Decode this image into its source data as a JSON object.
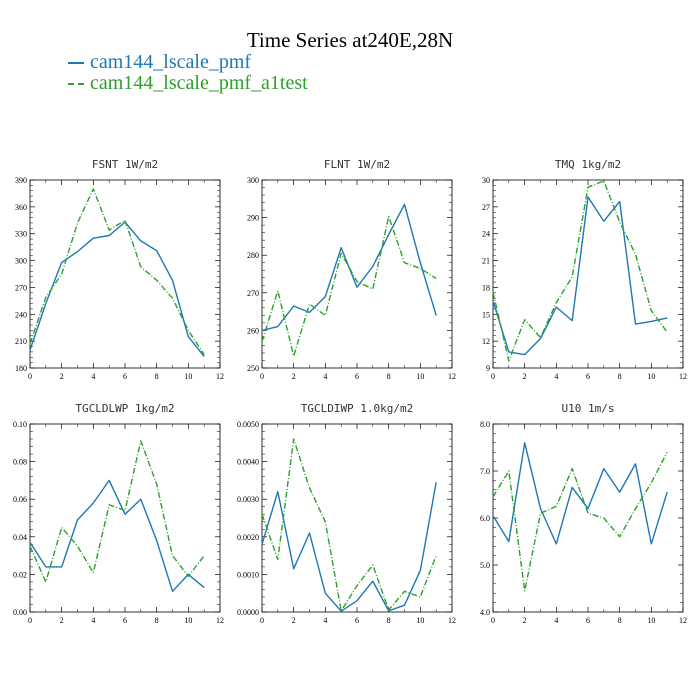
{
  "figure": {
    "title": "Time Series at240E,28N",
    "legend": [
      {
        "label": "cam144_lscale_pmf",
        "color": "#1f77b4",
        "style": "solid"
      },
      {
        "label": "cam144_lscale_pmf_a1test",
        "color": "#2ca02c",
        "style": "dashdot"
      }
    ]
  },
  "chart_data": [
    {
      "type": "line",
      "title": "FSNT  1W/m2",
      "x": [
        0,
        1,
        2,
        3,
        4,
        5,
        6,
        7,
        8,
        9,
        10,
        11
      ],
      "xlim": [
        0,
        12
      ],
      "xticks": [
        0,
        2,
        4,
        6,
        8,
        10,
        12
      ],
      "ylim": [
        180,
        390
      ],
      "yticks": [
        180,
        210,
        240,
        270,
        300,
        330,
        360,
        390
      ],
      "ytick_labels": [
        "180",
        "210",
        "240",
        "270",
        "300",
        "330",
        "360",
        "390"
      ],
      "series": [
        {
          "name": "cam144_lscale_pmf",
          "values": [
            200,
            252,
            298,
            310,
            325,
            328,
            343,
            322,
            311,
            278,
            215,
            193
          ]
        },
        {
          "name": "cam144_lscale_pmf_a1test",
          "values": [
            207,
            259,
            285,
            342,
            380,
            334,
            345,
            293,
            278,
            258,
            222,
            195
          ]
        }
      ]
    },
    {
      "type": "line",
      "title": "FLNT  1W/m2",
      "x": [
        0,
        1,
        2,
        3,
        4,
        5,
        6,
        7,
        8,
        9,
        10,
        11
      ],
      "xlim": [
        0,
        12
      ],
      "xticks": [
        0,
        2,
        4,
        6,
        8,
        10,
        12
      ],
      "ylim": [
        250,
        300
      ],
      "yticks": [
        250,
        260,
        270,
        280,
        290,
        300
      ],
      "ytick_labels": [
        "250",
        "260",
        "270",
        "280",
        "290",
        "300"
      ],
      "series": [
        {
          "name": "cam144_lscale_pmf",
          "values": [
            260,
            261,
            266.5,
            264.8,
            269,
            282,
            271.5,
            277,
            285.5,
            293.5,
            278,
            264
          ]
        },
        {
          "name": "cam144_lscale_pmf_a1test",
          "values": [
            257,
            270.5,
            253.2,
            267,
            264,
            280.5,
            273,
            271,
            290.3,
            278,
            276.5,
            273.8
          ]
        }
      ]
    },
    {
      "type": "line",
      "title": "TMQ  1kg/m2",
      "x": [
        0,
        1,
        2,
        3,
        4,
        5,
        6,
        7,
        8,
        9,
        10,
        11
      ],
      "xlim": [
        0,
        12
      ],
      "xticks": [
        0,
        2,
        4,
        6,
        8,
        10,
        12
      ],
      "ylim": [
        9,
        30
      ],
      "yticks": [
        9,
        12,
        15,
        18,
        21,
        24,
        27,
        30
      ],
      "ytick_labels": [
        "9",
        "12",
        "15",
        "18",
        "21",
        "24",
        "27",
        "30"
      ],
      "series": [
        {
          "name": "cam144_lscale_pmf",
          "values": [
            16.5,
            10.8,
            10.5,
            12.3,
            15.8,
            14.3,
            28.1,
            25.4,
            27.6,
            13.9,
            14.2,
            14.6
          ]
        },
        {
          "name": "cam144_lscale_pmf_a1test",
          "values": [
            17.5,
            9.8,
            14.4,
            12.4,
            16.3,
            19.2,
            29.2,
            29.9,
            25.3,
            21.7,
            15.4,
            13
          ]
        }
      ]
    },
    {
      "type": "line",
      "title": "TGCLDLWP  1kg/m2",
      "x": [
        0,
        1,
        2,
        3,
        4,
        5,
        6,
        7,
        8,
        9,
        10,
        11
      ],
      "xlim": [
        0,
        12
      ],
      "xticks": [
        0,
        2,
        4,
        6,
        8,
        10,
        12
      ],
      "ylim": [
        0,
        0.1
      ],
      "yticks": [
        0,
        0.02,
        0.04,
        0.06,
        0.08,
        0.1
      ],
      "ytick_labels": [
        "0.00",
        "0.02",
        "0.04",
        "0.06",
        "0.08",
        "0.10"
      ],
      "series": [
        {
          "name": "cam144_lscale_pmf",
          "values": [
            0.037,
            0.024,
            0.024,
            0.049,
            0.058,
            0.07,
            0.052,
            0.06,
            0.038,
            0.011,
            0.02,
            0.013
          ]
        },
        {
          "name": "cam144_lscale_pmf_a1test",
          "values": [
            0.035,
            0.016,
            0.045,
            0.035,
            0.021,
            0.057,
            0.054,
            0.091,
            0.068,
            0.03,
            0.019,
            0.03
          ]
        }
      ]
    },
    {
      "type": "line",
      "title": "TGCLDIWP  1.0kg/m2",
      "x": [
        0,
        1,
        2,
        3,
        4,
        5,
        6,
        7,
        8,
        9,
        10,
        11
      ],
      "xlim": [
        0,
        12
      ],
      "xticks": [
        0,
        2,
        4,
        6,
        8,
        10,
        12
      ],
      "ylim": [
        0,
        0.005
      ],
      "yticks": [
        0,
        0.001,
        0.002,
        0.003,
        0.004,
        0.005
      ],
      "ytick_labels": [
        "0.0000",
        "0.0010",
        "0.0020",
        "0.0030",
        "0.0040",
        "0.0050"
      ],
      "series": [
        {
          "name": "cam144_lscale_pmf",
          "values": [
            0.0018,
            0.0032,
            0.00115,
            0.0021,
            0.0005,
            2e-05,
            0.0003,
            0.00082,
            3e-05,
            0.00018,
            0.0011,
            0.00345
          ]
        },
        {
          "name": "cam144_lscale_pmf_a1test",
          "values": [
            0.0026,
            0.0014,
            0.0046,
            0.0033,
            0.0024,
            3e-05,
            0.0007,
            0.00125,
            5e-05,
            0.00055,
            0.0004,
            0.0015
          ]
        }
      ]
    },
    {
      "type": "line",
      "title": "U10  1m/s",
      "x": [
        0,
        1,
        2,
        3,
        4,
        5,
        6,
        7,
        8,
        9,
        10,
        11
      ],
      "xlim": [
        0,
        12
      ],
      "xticks": [
        0,
        2,
        4,
        6,
        8,
        10,
        12
      ],
      "ylim": [
        4,
        8
      ],
      "yticks": [
        4,
        5,
        6,
        7,
        8
      ],
      "ytick_labels": [
        "4.0",
        "5.0",
        "6.0",
        "7.0",
        "8.0"
      ],
      "series": [
        {
          "name": "cam144_lscale_pmf",
          "values": [
            6.05,
            5.5,
            7.6,
            6.2,
            5.45,
            6.65,
            6.2,
            7.05,
            6.55,
            7.15,
            5.45,
            6.55
          ]
        },
        {
          "name": "cam144_lscale_pmf_a1test",
          "values": [
            6.45,
            7,
            4.45,
            6.1,
            6.25,
            7.05,
            6.1,
            6,
            5.6,
            6.2,
            6.75,
            7.4
          ]
        }
      ]
    }
  ]
}
